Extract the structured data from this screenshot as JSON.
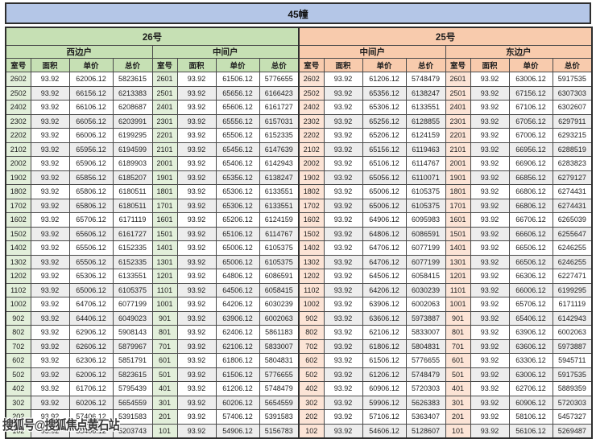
{
  "title": "45幢",
  "watermark": "搜狐号@搜狐焦点黄石站",
  "colors": {
    "title_bg": "#b4c6e7",
    "building_26_bg": "#c6e0b4",
    "building_25_bg": "#f8cbad",
    "room_col_26_bg": "#e2efda",
    "room_col_25_bg": "#fce4d6",
    "stripe_row_bg": "#ededed",
    "border": "#2e2e2e"
  },
  "column_headers": [
    "室号",
    "面积",
    "单价",
    "总价"
  ],
  "buildings": [
    {
      "label": "26号",
      "theme": "green",
      "sections": [
        {
          "side": "西边户",
          "rows": [
            [
              "2602",
              "93.92",
              "62006.12",
              "5823615"
            ],
            [
              "2502",
              "93.92",
              "66156.12",
              "6213383"
            ],
            [
              "2402",
              "93.92",
              "66106.12",
              "6208687"
            ],
            [
              "2302",
              "93.92",
              "66056.12",
              "6203991"
            ],
            [
              "2202",
              "93.92",
              "66006.12",
              "6199295"
            ],
            [
              "2102",
              "93.92",
              "65956.12",
              "6194599"
            ],
            [
              "2002",
              "93.92",
              "65906.12",
              "6189903"
            ],
            [
              "1902",
              "93.92",
              "65856.12",
              "6185207"
            ],
            [
              "1802",
              "93.92",
              "65806.12",
              "6180511"
            ],
            [
              "1702",
              "93.92",
              "65806.12",
              "6180511"
            ],
            [
              "1602",
              "93.92",
              "65706.12",
              "6171119"
            ],
            [
              "1502",
              "93.92",
              "65606.12",
              "6161727"
            ],
            [
              "1402",
              "93.92",
              "65506.12",
              "6152335"
            ],
            [
              "1302",
              "93.92",
              "65506.12",
              "6152335"
            ],
            [
              "1202",
              "93.92",
              "65306.12",
              "6133551"
            ],
            [
              "1102",
              "93.92",
              "65006.12",
              "6105375"
            ],
            [
              "1002",
              "93.92",
              "64706.12",
              "6077199"
            ],
            [
              "902",
              "93.92",
              "64406.12",
              "6049023"
            ],
            [
              "802",
              "93.92",
              "62906.12",
              "5908143"
            ],
            [
              "702",
              "93.92",
              "62606.12",
              "5879967"
            ],
            [
              "602",
              "93.92",
              "62306.12",
              "5851791"
            ],
            [
              "502",
              "93.92",
              "62006.12",
              "5823615"
            ],
            [
              "402",
              "93.92",
              "61706.12",
              "5795439"
            ],
            [
              "302",
              "93.92",
              "60206.12",
              "5654559"
            ],
            [
              "202",
              "93.92",
              "57406.12",
              "5391583"
            ],
            [
              "102",
              "93.92",
              "55406.12",
              "5203743"
            ]
          ]
        },
        {
          "side": "中间户",
          "rows": [
            [
              "2601",
              "93.92",
              "61506.12",
              "5776655"
            ],
            [
              "2501",
              "93.92",
              "65656.12",
              "6166423"
            ],
            [
              "2401",
              "93.92",
              "65606.12",
              "6161727"
            ],
            [
              "2301",
              "93.92",
              "65556.12",
              "6157031"
            ],
            [
              "2201",
              "93.92",
              "65506.12",
              "6152335"
            ],
            [
              "2101",
              "93.92",
              "65456.12",
              "6147639"
            ],
            [
              "2001",
              "93.92",
              "65406.12",
              "6142943"
            ],
            [
              "1901",
              "93.92",
              "65356.12",
              "6138247"
            ],
            [
              "1801",
              "93.92",
              "65306.12",
              "6133551"
            ],
            [
              "1701",
              "93.92",
              "65306.12",
              "6133551"
            ],
            [
              "1601",
              "93.92",
              "65206.12",
              "6124159"
            ],
            [
              "1501",
              "93.92",
              "65106.12",
              "6114767"
            ],
            [
              "1401",
              "93.92",
              "65006.12",
              "6105375"
            ],
            [
              "1301",
              "93.92",
              "65006.12",
              "6105375"
            ],
            [
              "1201",
              "93.92",
              "64806.12",
              "6086591"
            ],
            [
              "1101",
              "93.92",
              "64506.12",
              "6058415"
            ],
            [
              "1001",
              "93.92",
              "64206.12",
              "6030239"
            ],
            [
              "901",
              "93.92",
              "63906.12",
              "6002063"
            ],
            [
              "801",
              "93.92",
              "62406.12",
              "5861183"
            ],
            [
              "701",
              "93.92",
              "62106.12",
              "5833007"
            ],
            [
              "601",
              "93.92",
              "61806.12",
              "5804831"
            ],
            [
              "501",
              "93.92",
              "61506.12",
              "5776655"
            ],
            [
              "401",
              "93.92",
              "61206.12",
              "5748479"
            ],
            [
              "301",
              "93.92",
              "60206.12",
              "5654559"
            ],
            [
              "201",
              "93.92",
              "57406.12",
              "5391583"
            ],
            [
              "101",
              "93.92",
              "54906.12",
              "5156783"
            ]
          ]
        }
      ]
    },
    {
      "label": "25号",
      "theme": "orange",
      "sections": [
        {
          "side": "中间户",
          "rows": [
            [
              "2602",
              "93.92",
              "61206.12",
              "5748479"
            ],
            [
              "2502",
              "93.92",
              "65356.12",
              "6138247"
            ],
            [
              "2402",
              "93.92",
              "65306.12",
              "6133551"
            ],
            [
              "2302",
              "93.92",
              "65256.12",
              "6128855"
            ],
            [
              "2202",
              "93.92",
              "65206.12",
              "6124159"
            ],
            [
              "2102",
              "93.92",
              "65156.12",
              "6119463"
            ],
            [
              "2002",
              "93.92",
              "65106.12",
              "6114767"
            ],
            [
              "1902",
              "93.92",
              "65056.12",
              "6110071"
            ],
            [
              "1802",
              "93.92",
              "65006.12",
              "6105375"
            ],
            [
              "1702",
              "93.92",
              "65006.12",
              "6105375"
            ],
            [
              "1602",
              "93.92",
              "64906.12",
              "6095983"
            ],
            [
              "1502",
              "93.92",
              "64806.12",
              "6086591"
            ],
            [
              "1402",
              "93.92",
              "64706.12",
              "6077199"
            ],
            [
              "1302",
              "93.92",
              "64706.12",
              "6077199"
            ],
            [
              "1202",
              "93.92",
              "64506.12",
              "6058415"
            ],
            [
              "1102",
              "93.92",
              "64206.12",
              "6030239"
            ],
            [
              "1002",
              "93.92",
              "63906.12",
              "6002063"
            ],
            [
              "902",
              "93.92",
              "63606.12",
              "5973887"
            ],
            [
              "802",
              "93.92",
              "62106.12",
              "5833007"
            ],
            [
              "702",
              "93.92",
              "61806.12",
              "5804831"
            ],
            [
              "602",
              "93.92",
              "61506.12",
              "5776655"
            ],
            [
              "502",
              "93.92",
              "61206.12",
              "5748479"
            ],
            [
              "402",
              "93.92",
              "60906.12",
              "5720303"
            ],
            [
              "302",
              "93.92",
              "59906.12",
              "5626383"
            ],
            [
              "202",
              "93.92",
              "57106.12",
              "5363407"
            ],
            [
              "102",
              "93.92",
              "54606.12",
              "5128607"
            ]
          ]
        },
        {
          "side": "东边户",
          "rows": [
            [
              "2601",
              "93.92",
              "63006.12",
              "5917535"
            ],
            [
              "2501",
              "93.92",
              "67156.12",
              "6307303"
            ],
            [
              "2401",
              "93.92",
              "67106.12",
              "6302607"
            ],
            [
              "2301",
              "93.92",
              "67056.12",
              "6297911"
            ],
            [
              "2201",
              "93.92",
              "67006.12",
              "6293215"
            ],
            [
              "2101",
              "93.92",
              "66956.12",
              "6288519"
            ],
            [
              "2001",
              "93.92",
              "66906.12",
              "6283823"
            ],
            [
              "1901",
              "93.92",
              "66856.12",
              "6279127"
            ],
            [
              "1801",
              "93.92",
              "66806.12",
              "6274431"
            ],
            [
              "1701",
              "93.92",
              "66806.12",
              "6274431"
            ],
            [
              "1601",
              "93.92",
              "66706.12",
              "6265039"
            ],
            [
              "1501",
              "93.92",
              "66606.12",
              "6255647"
            ],
            [
              "1401",
              "93.92",
              "66506.12",
              "6246255"
            ],
            [
              "1301",
              "93.92",
              "66506.12",
              "6246255"
            ],
            [
              "1201",
              "93.92",
              "66306.12",
              "6227471"
            ],
            [
              "1101",
              "93.92",
              "66006.12",
              "6199295"
            ],
            [
              "1001",
              "93.92",
              "65706.12",
              "6171119"
            ],
            [
              "901",
              "93.92",
              "65406.12",
              "6142943"
            ],
            [
              "801",
              "93.92",
              "63906.12",
              "6002063"
            ],
            [
              "701",
              "93.92",
              "63606.12",
              "5973887"
            ],
            [
              "601",
              "93.92",
              "63306.12",
              "5945711"
            ],
            [
              "501",
              "93.92",
              "63006.12",
              "5917535"
            ],
            [
              "401",
              "93.92",
              "62706.12",
              "5889359"
            ],
            [
              "301",
              "93.92",
              "60906.12",
              "5720303"
            ],
            [
              "201",
              "93.92",
              "58106.12",
              "5457327"
            ],
            [
              "101",
              "93.92",
              "56106.12",
              "5269487"
            ]
          ]
        }
      ]
    }
  ]
}
